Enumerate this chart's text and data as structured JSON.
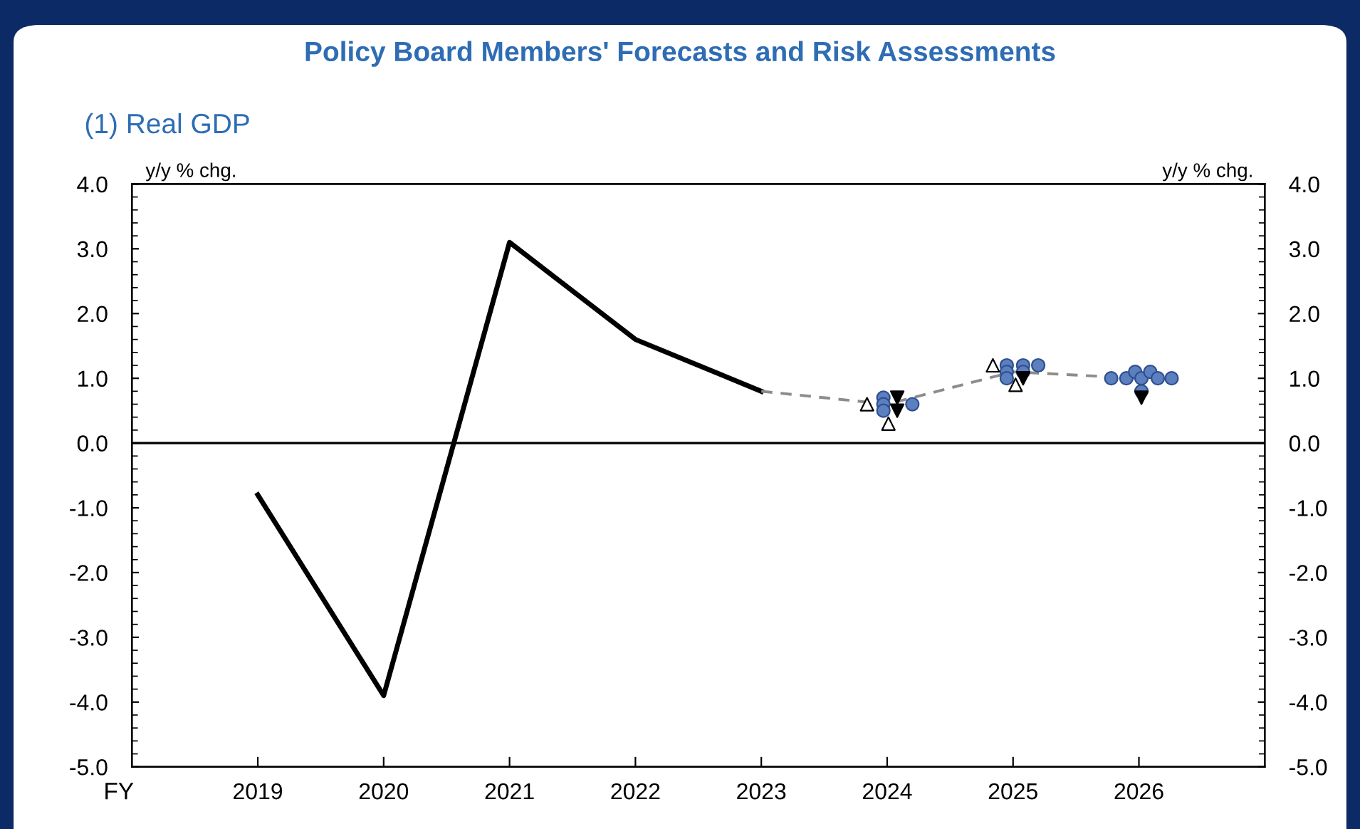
{
  "chart_data": {
    "type": "line",
    "title": "Policy Board Members' Forecasts and Risk Assessments",
    "subtitle": "(1) Real GDP",
    "xlabel": "FY",
    "ylabel": "y/y % chg.",
    "y2label": "y/y % chg.",
    "xlim": [
      2018,
      2027
    ],
    "xticks": [
      2019,
      2020,
      2021,
      2022,
      2023,
      2024,
      2025,
      2026
    ],
    "ylim": [
      -5.0,
      4.0
    ],
    "yticks": [
      {
        "value": -5,
        "label": "-5.0"
      },
      {
        "value": -4,
        "label": "-4.0"
      },
      {
        "value": -3,
        "label": "-3.0"
      },
      {
        "value": -2,
        "label": "-2.0"
      },
      {
        "value": -1,
        "label": "-1.0"
      },
      {
        "value": 0,
        "label": "0.0"
      },
      {
        "value": 1,
        "label": "1.0"
      },
      {
        "value": 2,
        "label": "2.0"
      },
      {
        "value": 3,
        "label": "3.0"
      },
      {
        "value": 4,
        "label": "4.0"
      }
    ],
    "y2lim": [
      -5.0,
      4.0
    ],
    "y2ticks": [
      {
        "value": -5,
        "label": "-5.0"
      },
      {
        "value": -4,
        "label": "-4.0"
      },
      {
        "value": -3,
        "label": "-3.0"
      },
      {
        "value": -2,
        "label": "-2.0"
      },
      {
        "value": -1,
        "label": "-1.0"
      },
      {
        "value": 0,
        "label": "0.0"
      },
      {
        "value": 1,
        "label": "1.0"
      },
      {
        "value": 2,
        "label": "2.0"
      },
      {
        "value": 3,
        "label": "3.0"
      },
      {
        "value": 4,
        "label": "4.0"
      }
    ],
    "grid": false,
    "legend": false,
    "ref_lines": [
      {
        "axis": "y",
        "value": 0,
        "color": "#000000",
        "line_style": "solid"
      }
    ],
    "series": [
      {
        "color": "#000000",
        "line_style": "solid",
        "marker": "none",
        "x": [
          2019,
          2020,
          2021,
          2022,
          2023
        ],
        "values": [
          -0.8,
          -3.9,
          3.1,
          1.6,
          0.8
        ]
      },
      {
        "color": "#8c8c8c",
        "line_style": "dashed",
        "marker": "none",
        "x": [
          2023,
          2024,
          2025,
          2026
        ],
        "values": [
          0.8,
          0.6,
          1.1,
          1.0
        ]
      },
      {
        "type": "scatter",
        "color": "#5b7fbf",
        "marker": "circle",
        "x": [
          2023.97,
          2023.97,
          2023.97,
          2024.2,
          2024.95,
          2024.95,
          2024.95,
          2025.08,
          2025.08,
          2025.2,
          2025.78,
          2025.9,
          2025.97,
          2026.02,
          2026.02,
          2026.09,
          2026.15,
          2026.26
        ],
        "values": [
          0.7,
          0.6,
          0.5,
          0.6,
          1.2,
          1.1,
          1.0,
          1.2,
          1.1,
          1.2,
          1.0,
          1.0,
          1.1,
          1.0,
          0.8,
          1.1,
          1.0,
          1.0
        ]
      },
      {
        "type": "scatter",
        "color": "#ffffff",
        "marker": "triangle",
        "x": [
          2023.84,
          2024.01,
          2024.84,
          2025.02
        ],
        "values": [
          0.6,
          0.3,
          1.2,
          0.9
        ]
      },
      {
        "type": "scatter",
        "color": "#000000",
        "marker": "triangle_down",
        "x": [
          2024.08,
          2024.08,
          2025.08,
          2026.02
        ],
        "values": [
          0.7,
          0.5,
          1.0,
          0.7
        ]
      }
    ]
  }
}
